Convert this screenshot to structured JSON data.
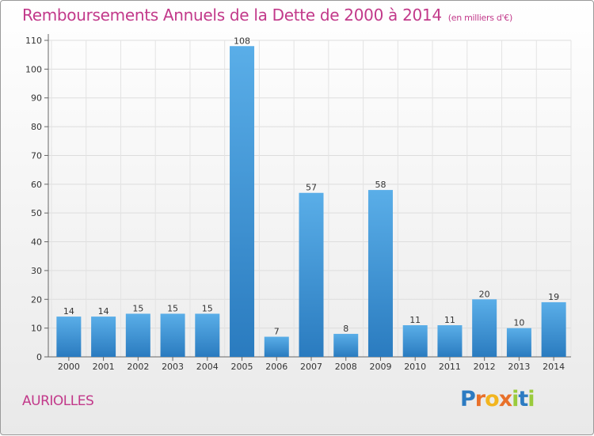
{
  "header": {
    "title": "Remboursements Annuels de la Dette de 2000 à 2014",
    "subtitle": "(en milliers d'€)"
  },
  "footer": {
    "commune": "AURIOLLES",
    "logo": "Proxiti",
    "logo_colors": [
      "#2c7bc2",
      "#e8702a",
      "#f2b51f",
      "#e8702a",
      "#9acb3c",
      "#2c7bc2",
      "#9acb3c"
    ]
  },
  "chart_data": {
    "type": "bar",
    "categories": [
      "2000",
      "2001",
      "2002",
      "2003",
      "2004",
      "2005",
      "2006",
      "2007",
      "2008",
      "2009",
      "2010",
      "2011",
      "2012",
      "2013",
      "2014"
    ],
    "values": [
      14,
      14,
      15,
      15,
      15,
      108,
      7,
      57,
      8,
      58,
      11,
      11,
      20,
      10,
      19
    ],
    "ylim": [
      0,
      110
    ],
    "yticks": [
      0,
      10,
      20,
      30,
      40,
      50,
      60,
      70,
      80,
      90,
      100,
      110
    ],
    "grid": true,
    "bar_color_top": "#5aaee8",
    "bar_color_bottom": "#2a7bbf"
  }
}
